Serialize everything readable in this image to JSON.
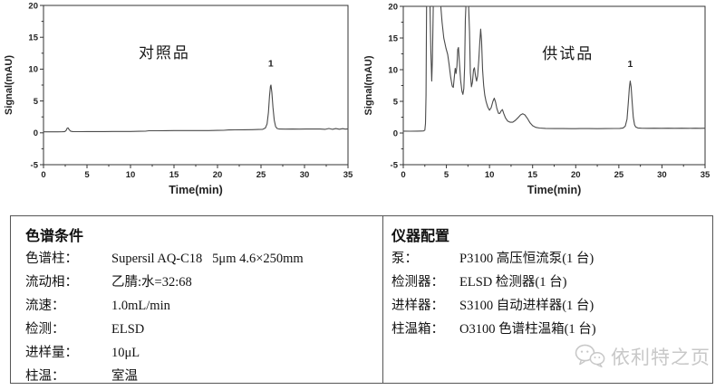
{
  "colors": {
    "trace": "#4a4a4a",
    "axis": "#333333",
    "tick_text": "#222222",
    "box_border": "#555555",
    "watermark": "#c8c8c8"
  },
  "chart_data": [
    {
      "type": "line",
      "sample_label": "对照品",
      "xlabel": "Time(min)",
      "ylabel": "Signal(mAU)",
      "xlim": [
        0,
        35
      ],
      "ylim": [
        -5,
        20
      ],
      "x_ticks": [
        0,
        5,
        10,
        15,
        20,
        25,
        30,
        35
      ],
      "y_ticks": [
        -5,
        0,
        5,
        10,
        15,
        20
      ],
      "x_minor_step": 2.5,
      "y_minor_step": 2.5,
      "sample_label_at": {
        "x": 13.9,
        "y": 12.6
      },
      "peak_annotation": {
        "text": "1",
        "x": 26.12,
        "y": 10.4
      },
      "series": [
        {
          "name": "signal",
          "points": [
            [
              0,
              0.15
            ],
            [
              0.8,
              0.15
            ],
            [
              1.6,
              0.16
            ],
            [
              2.2,
              0.17
            ],
            [
              2.45,
              0.2
            ],
            [
              2.6,
              0.38
            ],
            [
              2.72,
              0.72
            ],
            [
              2.82,
              0.78
            ],
            [
              2.95,
              0.5
            ],
            [
              3.1,
              0.27
            ],
            [
              3.35,
              0.2
            ],
            [
              4,
              0.18
            ],
            [
              5,
              0.2
            ],
            [
              6,
              0.2
            ],
            [
              7,
              0.2
            ],
            [
              8,
              0.21
            ],
            [
              9,
              0.22
            ],
            [
              10,
              0.22
            ],
            [
              11,
              0.24
            ],
            [
              11.7,
              0.26
            ],
            [
              12.1,
              0.32
            ],
            [
              13,
              0.33
            ],
            [
              14,
              0.34
            ],
            [
              15,
              0.35
            ],
            [
              16,
              0.35
            ],
            [
              17,
              0.35
            ],
            [
              18,
              0.36
            ],
            [
              19,
              0.36
            ],
            [
              20,
              0.38
            ],
            [
              20.7,
              0.4
            ],
            [
              21.3,
              0.46
            ],
            [
              22,
              0.47
            ],
            [
              23,
              0.48
            ],
            [
              24,
              0.5
            ],
            [
              24.7,
              0.52
            ],
            [
              25.2,
              0.56
            ],
            [
              25.5,
              0.75
            ],
            [
              25.7,
              1.4
            ],
            [
              25.85,
              3.2
            ],
            [
              25.98,
              5.8
            ],
            [
              26.08,
              7.3
            ],
            [
              26.15,
              7.5
            ],
            [
              26.25,
              6.3
            ],
            [
              26.38,
              4.0
            ],
            [
              26.52,
              2.0
            ],
            [
              26.68,
              1.0
            ],
            [
              26.85,
              0.68
            ],
            [
              27.1,
              0.6
            ],
            [
              27.8,
              0.58
            ],
            [
              28.6,
              0.6
            ],
            [
              29.4,
              0.58
            ],
            [
              30.2,
              0.6
            ],
            [
              31,
              0.59
            ],
            [
              31.8,
              0.6
            ],
            [
              32.4,
              0.56
            ],
            [
              32.8,
              0.68
            ],
            [
              33.2,
              0.56
            ],
            [
              33.6,
              0.67
            ],
            [
              34,
              0.57
            ],
            [
              34.4,
              0.65
            ],
            [
              34.7,
              0.58
            ],
            [
              35,
              0.62
            ]
          ]
        }
      ]
    },
    {
      "type": "line",
      "sample_label": "供试品",
      "xlabel": "Time(min)",
      "ylabel": "Signal(mAU)",
      "xlim": [
        0,
        35
      ],
      "ylim": [
        -5,
        20
      ],
      "x_ticks": [
        0,
        5,
        10,
        15,
        20,
        25,
        30,
        35
      ],
      "y_ticks": [
        -5,
        0,
        5,
        10,
        15,
        20
      ],
      "x_minor_step": 2.5,
      "y_minor_step": 2.5,
      "sample_label_at": {
        "x": 19.1,
        "y": 12.6
      },
      "peak_annotation": {
        "text": "1",
        "x": 26.32,
        "y": 10.4
      },
      "series": [
        {
          "name": "signal",
          "points": [
            [
              0,
              0.3
            ],
            [
              0.8,
              0.29
            ],
            [
              1.6,
              0.3
            ],
            [
              2.1,
              0.31
            ],
            [
              2.35,
              0.33
            ],
            [
              2.5,
              0.45
            ],
            [
              2.58,
              1.5
            ],
            [
              2.64,
              6
            ],
            [
              2.7,
              25
            ],
            [
              3.1,
              25
            ],
            [
              3.2,
              13
            ],
            [
              3.3,
              8.2
            ],
            [
              3.38,
              12
            ],
            [
              3.48,
              25
            ],
            [
              4.35,
              25
            ],
            [
              4.5,
              17.5
            ],
            [
              4.7,
              15
            ],
            [
              4.95,
              13.4
            ],
            [
              5.15,
              12.4
            ],
            [
              5.3,
              11
            ],
            [
              5.5,
              8.8
            ],
            [
              5.68,
              7.4
            ],
            [
              5.8,
              7.2
            ],
            [
              5.92,
              8.8
            ],
            [
              6.02,
              10.2
            ],
            [
              6.12,
              9.4
            ],
            [
              6.22,
              10.6
            ],
            [
              6.32,
              13.2
            ],
            [
              6.4,
              13.5
            ],
            [
              6.52,
              11
            ],
            [
              6.65,
              8.3
            ],
            [
              6.8,
              6.6
            ],
            [
              6.92,
              6.1
            ],
            [
              7.02,
              7
            ],
            [
              7.12,
              10.5
            ],
            [
              7.2,
              18
            ],
            [
              7.26,
              25
            ],
            [
              7.58,
              25
            ],
            [
              7.68,
              16
            ],
            [
              7.78,
              9.5
            ],
            [
              7.9,
              7.3
            ],
            [
              8.02,
              8
            ],
            [
              8.15,
              10
            ],
            [
              8.25,
              10.3
            ],
            [
              8.38,
              9
            ],
            [
              8.5,
              8.2
            ],
            [
              8.62,
              9
            ],
            [
              8.75,
              11.5
            ],
            [
              8.88,
              14.5
            ],
            [
              8.98,
              16.4
            ],
            [
              9.08,
              14.5
            ],
            [
              9.2,
              10
            ],
            [
              9.32,
              7.5
            ],
            [
              9.45,
              6
            ],
            [
              9.6,
              5
            ],
            [
              9.8,
              4.1
            ],
            [
              10,
              3.6
            ],
            [
              10.2,
              4
            ],
            [
              10.4,
              5
            ],
            [
              10.55,
              5.5
            ],
            [
              10.7,
              4.9
            ],
            [
              10.85,
              3.9
            ],
            [
              11.05,
              3.1
            ],
            [
              11.2,
              3.1
            ],
            [
              11.35,
              3.5
            ],
            [
              11.5,
              3.7
            ],
            [
              11.65,
              3.1
            ],
            [
              11.85,
              2.4
            ],
            [
              12.1,
              1.9
            ],
            [
              12.4,
              1.7
            ],
            [
              12.7,
              1.7
            ],
            [
              13,
              2
            ],
            [
              13.3,
              2.4
            ],
            [
              13.6,
              2.85
            ],
            [
              13.85,
              3.05
            ],
            [
              14.1,
              2.85
            ],
            [
              14.4,
              2.3
            ],
            [
              14.7,
              1.6
            ],
            [
              15,
              1.15
            ],
            [
              15.35,
              0.9
            ],
            [
              15.8,
              0.78
            ],
            [
              16.5,
              0.73
            ],
            [
              17.5,
              0.7
            ],
            [
              18.5,
              0.7
            ],
            [
              19.5,
              0.69
            ],
            [
              20.5,
              0.7
            ],
            [
              21.5,
              0.7
            ],
            [
              22.5,
              0.69
            ],
            [
              23.5,
              0.7
            ],
            [
              24.5,
              0.71
            ],
            [
              25.1,
              0.73
            ],
            [
              25.5,
              0.8
            ],
            [
              25.75,
              1.1
            ],
            [
              25.95,
              2.2
            ],
            [
              26.1,
              4.8
            ],
            [
              26.22,
              7.2
            ],
            [
              26.32,
              8.2
            ],
            [
              26.42,
              7.3
            ],
            [
              26.55,
              4.8
            ],
            [
              26.68,
              2.5
            ],
            [
              26.82,
              1.3
            ],
            [
              26.95,
              0.95
            ],
            [
              27.2,
              0.8
            ],
            [
              27.6,
              0.76
            ],
            [
              28.3,
              0.74
            ],
            [
              29.1,
              0.76
            ],
            [
              29.9,
              0.74
            ],
            [
              30.7,
              0.76
            ],
            [
              31.5,
              0.74
            ],
            [
              32.3,
              0.76
            ],
            [
              33.1,
              0.74
            ],
            [
              33.9,
              0.76
            ],
            [
              34.5,
              0.74
            ],
            [
              35,
              0.76
            ]
          ]
        }
      ]
    }
  ],
  "conditions_box": {
    "title": "色谱条件",
    "rows": [
      {
        "label": "色谱柱：",
        "value": "Supersil AQ-C18   5μm 4.6×250mm"
      },
      {
        "label": "流动相：",
        "value": "乙腈:水=32:68"
      },
      {
        "label": "流速：",
        "value": "1.0mL/min"
      },
      {
        "label": "检测：",
        "value": "ELSD"
      },
      {
        "label": "进样量：",
        "value": "10μL"
      },
      {
        "label": "柱温：",
        "value": "室温"
      }
    ]
  },
  "instrument_box": {
    "title": "仪器配置",
    "rows": [
      {
        "label": "泵：",
        "value": "P3100 高压恒流泵(1 台)"
      },
      {
        "label": "检测器：",
        "value": "ELSD 检测器(1 台)"
      },
      {
        "label": "进样器：",
        "value": "S3100 自动进样器(1 台)"
      },
      {
        "label": "柱温箱：",
        "value": "O3100 色谱柱温箱(1 台)"
      }
    ]
  },
  "watermark": {
    "text": "依利特之页"
  }
}
